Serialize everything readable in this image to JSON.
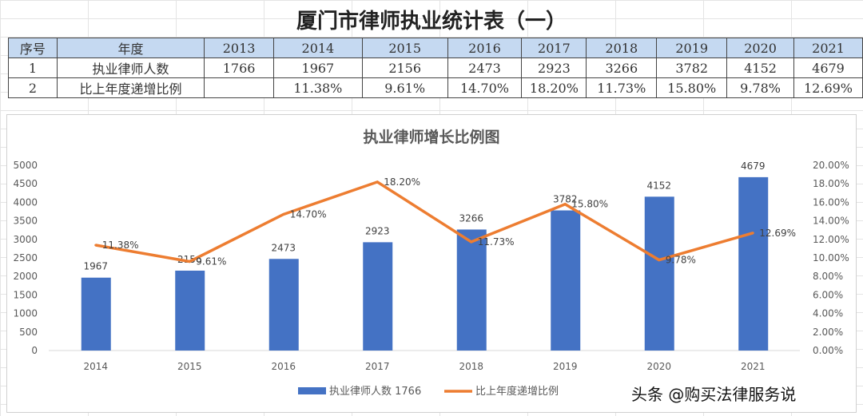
{
  "sheet": {
    "title": "厦门市律师执业统计表（一）",
    "headers": [
      "序号",
      "年度",
      "2013",
      "2014",
      "2015",
      "2016",
      "2017",
      "2018",
      "2019",
      "2020",
      "2021"
    ],
    "rows": [
      [
        "1",
        "执业律师人数",
        "1766",
        "1967",
        "2156",
        "2473",
        "2923",
        "3266",
        "3782",
        "4152",
        "4679"
      ],
      [
        "2",
        "比上年度递增比例",
        "",
        "11.38%",
        "9.61%",
        "14.70%",
        "18.20%",
        "11.73%",
        "15.80%",
        "9.78%",
        "12.69%"
      ]
    ]
  },
  "chart_data": {
    "type": "bar+line",
    "title": "执业律师增长比例图",
    "categories": [
      "2014",
      "2015",
      "2016",
      "2017",
      "2018",
      "2019",
      "2020",
      "2021"
    ],
    "series": [
      {
        "name": "执业律师人数 1766",
        "type": "bar",
        "axis": "left",
        "color": "#4472c4",
        "values": [
          1967,
          2156,
          2473,
          2923,
          3266,
          3782,
          4152,
          4679
        ],
        "labels": [
          "1967",
          "2156",
          "2473",
          "2923",
          "3266",
          "3782",
          "4152",
          "4679"
        ]
      },
      {
        "name": "比上年度递增比例",
        "type": "line",
        "axis": "right",
        "color": "#ed7d31",
        "values": [
          11.38,
          9.61,
          14.7,
          18.2,
          11.73,
          15.8,
          9.78,
          12.69
        ],
        "labels": [
          "11.38%",
          "9.61%",
          "14.70%",
          "18.20%",
          "11.73%",
          "15.80%",
          "9.78%",
          "12.69%"
        ]
      }
    ],
    "ylim": [
      0,
      5000
    ],
    "yticks": [
      "0",
      "500",
      "1000",
      "1500",
      "2000",
      "2500",
      "3000",
      "3500",
      "4000",
      "4500",
      "5000"
    ],
    "y2lim": [
      0,
      20
    ],
    "y2ticks": [
      "0.00%",
      "2.00%",
      "4.00%",
      "6.00%",
      "8.00%",
      "10.00%",
      "12.00%",
      "14.00%",
      "16.00%",
      "18.00%",
      "20.00%"
    ],
    "legend": "bottom",
    "grid": false
  },
  "watermark": "头条 @购买法律服务说"
}
